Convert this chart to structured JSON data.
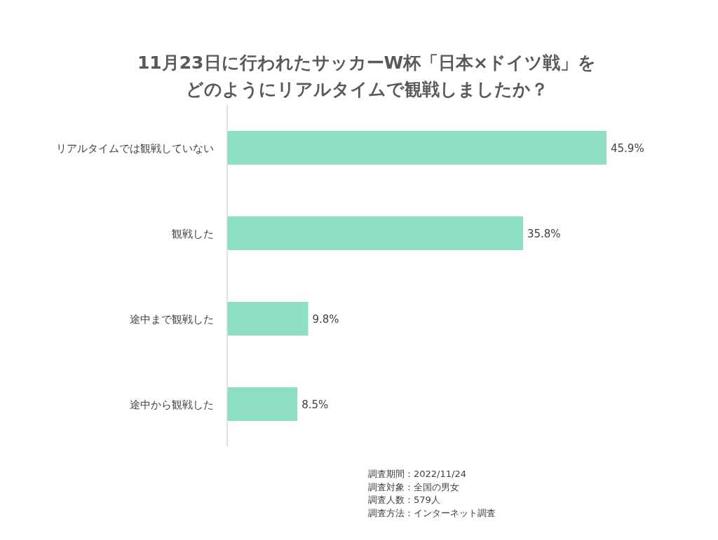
{
  "chart_data": {
    "type": "bar",
    "orientation": "horizontal",
    "title": "11月23日に行われたサッカーW杯「日本×ドイツ戦」をどのようにリアルタイムで観戦しましたか？",
    "categories": [
      "リアルタイムでは観戦していない",
      "観戦した",
      "途中まで観戦した",
      "途中から観戦した"
    ],
    "values": [
      45.9,
      35.8,
      9.8,
      8.5
    ],
    "value_labels": [
      "45.9%",
      "35.8%",
      "9.8%",
      "8.5%"
    ],
    "color": "#8ddfc4",
    "annotations": [
      "調査期間：2022/11/24",
      "調査対象：全国の男女",
      "調査人数：579人",
      "調査方法：インターネット調査"
    ]
  }
}
